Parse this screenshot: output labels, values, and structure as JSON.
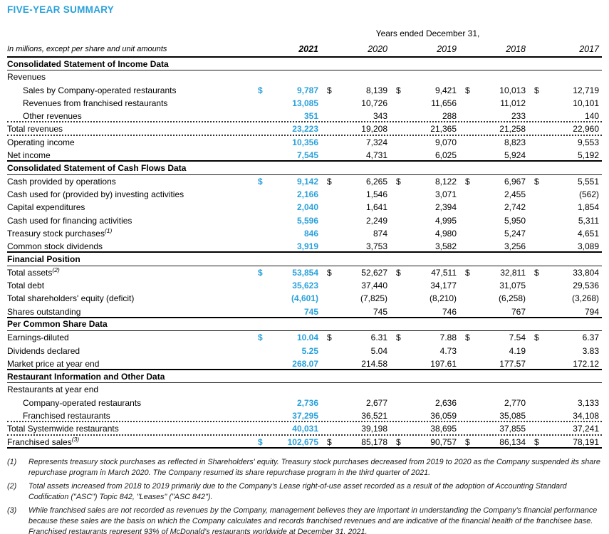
{
  "title": "FIVE-YEAR SUMMARY",
  "colors": {
    "accent": "#2AA1DB"
  },
  "table": {
    "period_header": "Years ended December 31,",
    "units_note": "In millions, except per share and unit amounts",
    "years": [
      "2021",
      "2020",
      "2019",
      "2018",
      "2017"
    ],
    "rows": [
      {
        "type": "section",
        "label": "Consolidated Statement of Income Data",
        "border": "thin"
      },
      {
        "type": "plain",
        "label": "Revenues",
        "border": "none"
      },
      {
        "type": "data",
        "label": "Sales by Company-operated restaurants",
        "indent": true,
        "dollar": true,
        "border": "none",
        "values": [
          "9,787",
          "8,139",
          "9,421",
          "10,013",
          "12,719"
        ]
      },
      {
        "type": "data",
        "label": "Revenues from franchised restaurants",
        "indent": true,
        "border": "none",
        "values": [
          "13,085",
          "10,726",
          "11,656",
          "11,012",
          "10,101"
        ]
      },
      {
        "type": "data",
        "label": "Other revenues",
        "indent": true,
        "border": "dotted",
        "values": [
          "351",
          "343",
          "288",
          "233",
          "140"
        ]
      },
      {
        "type": "data",
        "label": "Total revenues",
        "border": "dotted",
        "values": [
          "23,223",
          "19,208",
          "21,365",
          "21,258",
          "22,960"
        ]
      },
      {
        "type": "data",
        "label": "Operating income",
        "border": "none",
        "values": [
          "10,356",
          "7,324",
          "9,070",
          "8,823",
          "9,553"
        ]
      },
      {
        "type": "data",
        "label": "Net income",
        "border": "thick",
        "values": [
          "7,545",
          "4,731",
          "6,025",
          "5,924",
          "5,192"
        ]
      },
      {
        "type": "section",
        "label": "Consolidated Statement of Cash Flows Data",
        "border": "thin"
      },
      {
        "type": "data",
        "label": "Cash provided by operations",
        "dollar": true,
        "border": "none",
        "values": [
          "9,142",
          "6,265",
          "8,122",
          "6,967",
          "5,551"
        ]
      },
      {
        "type": "data",
        "label": "Cash used for (provided by) investing activities",
        "border": "none",
        "values": [
          "2,166",
          "1,546",
          "3,071",
          "2,455",
          "(562)"
        ]
      },
      {
        "type": "data",
        "label": "Capital expenditures",
        "border": "none",
        "values": [
          "2,040",
          "1,641",
          "2,394",
          "2,742",
          "1,854"
        ]
      },
      {
        "type": "data",
        "label": "Cash used for financing activities",
        "border": "none",
        "values": [
          "5,596",
          "2,249",
          "4,995",
          "5,950",
          "5,311"
        ]
      },
      {
        "type": "data",
        "label": "Treasury stock purchases",
        "sup": "(1)",
        "border": "none",
        "values": [
          "846",
          "874",
          "4,980",
          "5,247",
          "4,651"
        ]
      },
      {
        "type": "data",
        "label": "Common stock dividends",
        "border": "thick",
        "values": [
          "3,919",
          "3,753",
          "3,582",
          "3,256",
          "3,089"
        ]
      },
      {
        "type": "section",
        "label": "Financial Position",
        "border": "thin"
      },
      {
        "type": "data",
        "label": "Total assets",
        "sup": "(2)",
        "dollar": true,
        "border": "none",
        "values": [
          "53,854",
          "52,627",
          "47,511",
          "32,811",
          "33,804"
        ]
      },
      {
        "type": "data",
        "label": "Total debt",
        "border": "none",
        "values": [
          "35,623",
          "37,440",
          "34,177",
          "31,075",
          "29,536"
        ]
      },
      {
        "type": "data",
        "label": "Total shareholders' equity (deficit)",
        "border": "none",
        "values": [
          "(4,601)",
          "(7,825)",
          "(8,210)",
          "(6,258)",
          "(3,268)"
        ]
      },
      {
        "type": "data",
        "label": "Shares outstanding",
        "border": "thick",
        "values": [
          "745",
          "745",
          "746",
          "767",
          "794"
        ]
      },
      {
        "type": "section",
        "label": "Per Common Share Data",
        "border": "thin"
      },
      {
        "type": "data",
        "label": "Earnings-diluted",
        "dollar": true,
        "border": "none",
        "values": [
          "10.04",
          "6.31",
          "7.88",
          "7.54",
          "6.37"
        ]
      },
      {
        "type": "data",
        "label": "Dividends declared",
        "border": "none",
        "values": [
          "5.25",
          "5.04",
          "4.73",
          "4.19",
          "3.83"
        ]
      },
      {
        "type": "data",
        "label": "Market price at year end",
        "border": "thick",
        "values": [
          "268.07",
          "214.58",
          "197.61",
          "177.57",
          "172.12"
        ]
      },
      {
        "type": "section",
        "label": "Restaurant Information and Other Data",
        "border": "thin"
      },
      {
        "type": "plain",
        "label": "Restaurants at year end",
        "border": "none"
      },
      {
        "type": "data",
        "label": "Company-operated restaurants",
        "indent": true,
        "border": "none",
        "values": [
          "2,736",
          "2,677",
          "2,636",
          "2,770",
          "3,133"
        ]
      },
      {
        "type": "data",
        "label": "Franchised restaurants",
        "indent": true,
        "border": "dotted",
        "values": [
          "37,295",
          "36,521",
          "36,059",
          "35,085",
          "34,108"
        ]
      },
      {
        "type": "data",
        "label": "Total Systemwide restaurants",
        "border": "dotted",
        "values": [
          "40,031",
          "39,198",
          "38,695",
          "37,855",
          "37,241"
        ]
      },
      {
        "type": "data",
        "label": "Franchised sales",
        "sup": "(3)",
        "dollar": true,
        "border": "thick",
        "values": [
          "102,675",
          "85,178",
          "90,757",
          "86,134",
          "78,191"
        ]
      }
    ]
  },
  "footnotes": [
    {
      "num": "(1)",
      "text": "Represents treasury stock purchases as reflected in Shareholders' equity. Treasury stock purchases decreased from 2019 to 2020 as the Company suspended its share repurchase program in March 2020. The Company resumed its share repurchase program in the third quarter of 2021."
    },
    {
      "num": "(2)",
      "text": "Total assets increased from 2018 to 2019 primarily due to the Company's Lease right-of-use asset recorded as a result of the adoption of Accounting Standard Codification (\"ASC\") Topic 842, \"Leases\" (\"ASC 842\")."
    },
    {
      "num": "(3)",
      "text": "While franchised sales are not recorded as revenues by the Company, management believes they are important in understanding the Company's financial performance because these sales are the basis on which the Company calculates and records franchised revenues and are indicative of the financial health of the franchisee base. Franchised restaurants represent 93% of McDonald's restaurants worldwide at December 31, 2021."
    }
  ]
}
